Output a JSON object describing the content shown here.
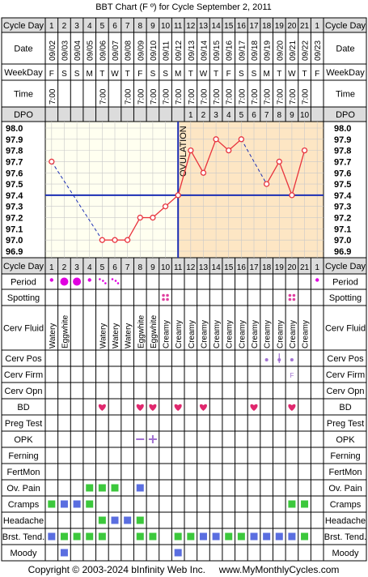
{
  "title": "BBT Chart (F º) for Cycle September 2, 2011",
  "footer": "Copyright © 2003-2024 bInfinity Web Inc.     www.MyMonthlyCycles.com",
  "colors": {
    "grid": "#000000",
    "header_bg": "#dcdcdc",
    "pre_ov_bg": "#fffff0",
    "post_ov_bg": "#fde6c4",
    "temp_line": "#e8323c",
    "coverline": "#1c2fb4",
    "ovulation_line": "#1c2fb4",
    "heart": "#e0286e",
    "period": "#e000e0",
    "spotting": "#e040a0",
    "green": "#3cc83c",
    "blue": "#5a6ee0",
    "lavender": "#a070d0"
  },
  "row_labels": {
    "cycle_day": "Cycle Day",
    "date": "Date",
    "weekday": "WeekDay",
    "time": "Time",
    "dpo": "DPO",
    "period": "Period",
    "spotting": "Spotting",
    "cerv_fluid": "Cerv Fluid",
    "cerv_pos": "Cerv Pos",
    "cerv_firm": "Cerv Firm",
    "cerv_opn": "Cerv Opn",
    "bd": "BD",
    "preg_test": "Preg Test",
    "opk": "OPK",
    "ferning": "Ferning",
    "fertmon": "FertMon",
    "ov_pain": "Ov. Pain",
    "cramps": "Cramps",
    "headache": "Headache",
    "brst_tend": "Brst. Tend.",
    "moody": "Moody"
  },
  "cycle_days": [
    "1",
    "2",
    "3",
    "4",
    "5",
    "6",
    "7",
    "8",
    "9",
    "10",
    "11",
    "12",
    "13",
    "14",
    "15",
    "16",
    "17",
    "18",
    "19",
    "20",
    "21",
    "1"
  ],
  "dates": [
    "09/02",
    "09/03",
    "09/04",
    "09/05",
    "09/06",
    "09/07",
    "09/08",
    "09/09",
    "09/10",
    "09/11",
    "09/12",
    "09/13",
    "09/14",
    "09/15",
    "09/16",
    "09/17",
    "09/18",
    "09/19",
    "09/20",
    "09/21",
    "09/22",
    "09/23"
  ],
  "weekdays": [
    "F",
    "S",
    "S",
    "M",
    "T",
    "W",
    "T",
    "F",
    "S",
    "S",
    "M",
    "T",
    "W",
    "T",
    "F",
    "S",
    "S",
    "M",
    "T",
    "W",
    "T",
    "F"
  ],
  "times": [
    "7:00",
    "",
    "",
    "",
    "7:00",
    "",
    "7:00",
    "7:00",
    "7:00",
    "7:00",
    "7:00",
    "7:00",
    "7:00",
    "7:00",
    "7:00",
    "7:00",
    "7:00",
    "7:00",
    "7:00",
    "7:00",
    "7:00",
    ""
  ],
  "dpo": [
    "",
    "",
    "",
    "",
    "",
    "",
    "",
    "",
    "",
    "",
    "",
    "1",
    "2",
    "3",
    "4",
    "5",
    "6",
    "7",
    "8",
    "9",
    "10",
    ""
  ],
  "temp_axis": [
    "98.0",
    "97.9",
    "97.8",
    "97.7",
    "97.6",
    "97.5",
    "97.4",
    "97.3",
    "97.2",
    "97.1",
    "97.0",
    "96.9"
  ],
  "ovulation_label": "OVULATION",
  "cerv_fluid": [
    "Watery",
    "Eggwhite",
    "",
    "",
    "Watery",
    "Watery",
    "Watery",
    "Eggwhite",
    "Eggwhite",
    "Creamy",
    "Creamy",
    "Creamy",
    "Creamy",
    "Creamy",
    "Creamy",
    "Creamy",
    "Creamy",
    "Creamy",
    "Creamy",
    "Creamy",
    "Creamy",
    ""
  ],
  "cerv_firm": [
    "",
    "",
    "",
    "",
    "",
    "",
    "",
    "",
    "",
    "",
    "",
    "",
    "",
    "",
    "",
    "",
    "",
    "",
    "",
    "F",
    "",
    ""
  ],
  "chart_data": {
    "type": "line",
    "title": "BBT Chart (F º) for Cycle September 2, 2011",
    "xlabel": "Cycle Day",
    "ylabel": "",
    "ylim": [
      96.9,
      98.0
    ],
    "x": [
      1,
      2,
      3,
      4,
      5,
      6,
      7,
      8,
      9,
      10,
      11,
      12,
      13,
      14,
      15,
      16,
      17,
      18,
      19,
      20,
      21,
      22
    ],
    "temperatures": [
      97.7,
      null,
      null,
      null,
      97.0,
      97.0,
      97.0,
      97.2,
      97.2,
      97.3,
      97.4,
      97.8,
      97.6,
      97.9,
      97.8,
      97.9,
      null,
      97.5,
      97.7,
      97.4,
      97.8,
      null
    ],
    "coverline": 97.4,
    "ovulation_day": 11,
    "grid": true,
    "legend": "none"
  },
  "symptoms": {
    "period": [
      "dot",
      "big",
      "big",
      "dot",
      "dots",
      "dots",
      "",
      "",
      "",
      "",
      "",
      "",
      "",
      "",
      "",
      "",
      "",
      "",
      "",
      "",
      "",
      "dot"
    ],
    "spotting": [
      0,
      0,
      0,
      0,
      0,
      0,
      0,
      0,
      0,
      1,
      0,
      0,
      0,
      0,
      0,
      0,
      0,
      0,
      0,
      1,
      0,
      0
    ],
    "cerv_pos": [
      0,
      0,
      0,
      0,
      0,
      0,
      0,
      0,
      0,
      0,
      0,
      0,
      0,
      0,
      0,
      0,
      0,
      1,
      1,
      1,
      0,
      0
    ],
    "bd": [
      0,
      0,
      0,
      0,
      1,
      0,
      0,
      1,
      1,
      0,
      1,
      0,
      1,
      0,
      0,
      0,
      1,
      0,
      0,
      1,
      0,
      0
    ],
    "opk": [
      "",
      "",
      "",
      "",
      "",
      "",
      "",
      "neg",
      "pos",
      "",
      "",
      "",
      "",
      "",
      "",
      "",
      "",
      "",
      "",
      "",
      "",
      ""
    ],
    "ov_pain": [
      "",
      "",
      "",
      "green",
      "green",
      "green",
      "",
      "blue",
      "",
      "",
      "",
      "",
      "",
      "",
      "",
      "",
      "",
      "",
      "",
      "",
      "",
      ""
    ],
    "cramps": [
      "green",
      "blue",
      "blue",
      "green",
      "",
      "",
      "",
      "",
      "",
      "",
      "",
      "",
      "",
      "",
      "",
      "",
      "",
      "",
      "",
      "green",
      "green",
      ""
    ],
    "headache": [
      "",
      "",
      "",
      "",
      "green",
      "blue",
      "blue",
      "green",
      "",
      "",
      "",
      "",
      "",
      "",
      "",
      "",
      "",
      "",
      "",
      "",
      "",
      ""
    ],
    "brst_tend": [
      "blue",
      "green",
      "green",
      "green",
      "green",
      "",
      "",
      "green",
      "green",
      "",
      "green",
      "green",
      "blue",
      "blue",
      "green",
      "green",
      "blue",
      "blue",
      "blue",
      "blue",
      "green",
      ""
    ],
    "moody": [
      "",
      "blue",
      "",
      "",
      "",
      "",
      "",
      "",
      "",
      "",
      "blue",
      "",
      "",
      "",
      "",
      "",
      "",
      "",
      "",
      "",
      "",
      ""
    ]
  }
}
